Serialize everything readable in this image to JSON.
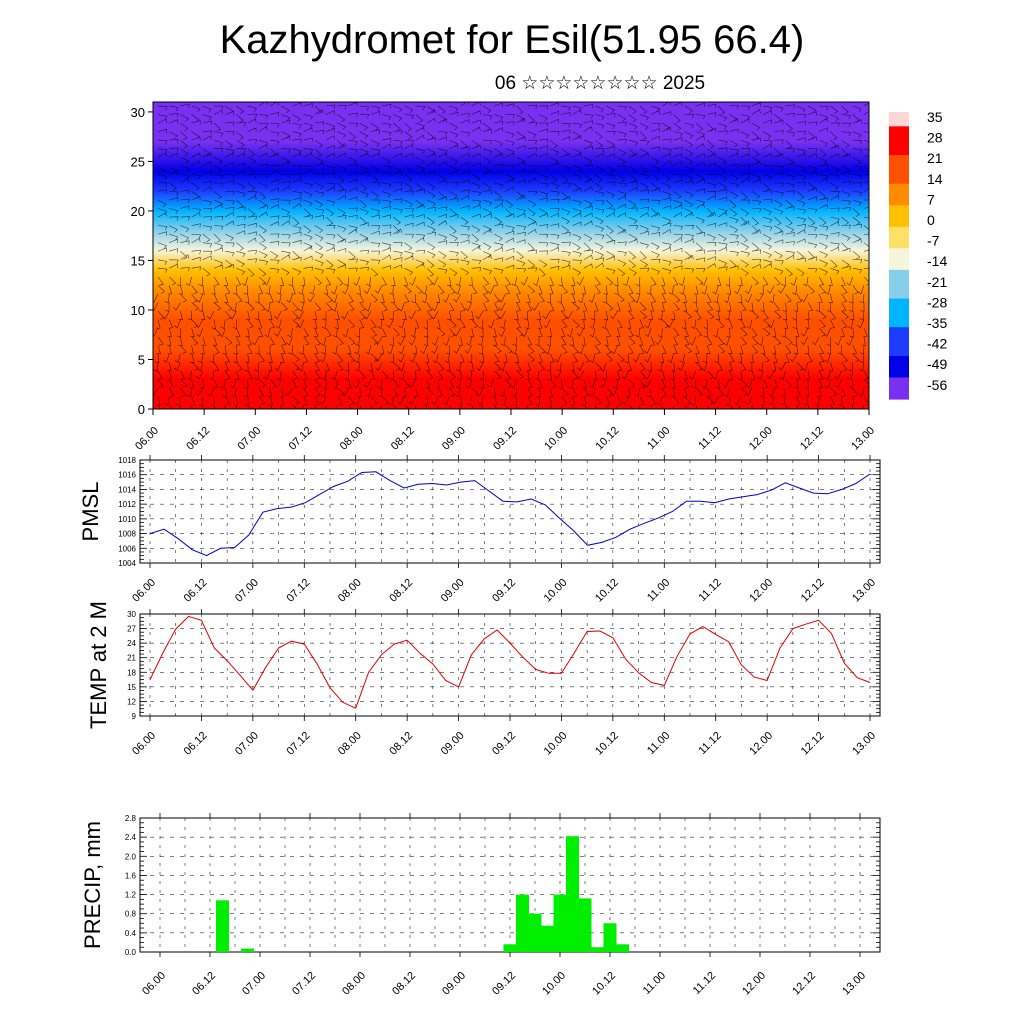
{
  "header": {
    "title": "Kazhydromet for Esil(51.95 66.4)",
    "subtitle": "06 ☆☆☆☆☆☆☆☆ 2025"
  },
  "chart_data": [
    {
      "type": "heatmap",
      "title": "",
      "x_tick_labels": [
        "06.00",
        "06.12",
        "07.00",
        "07.12",
        "08.00",
        "08.12",
        "09.00",
        "09.12",
        "10.00",
        "10.12",
        "11.00",
        "11.12",
        "12.00",
        "12.12",
        "13.00"
      ],
      "y_ticks": [
        0,
        5,
        10,
        15,
        20,
        25,
        30
      ],
      "ylim": [
        0,
        31
      ],
      "colorbar": {
        "labels": [
          "35",
          "28",
          "21",
          "14",
          "7",
          "0",
          "-7",
          "-14",
          "-21",
          "-28",
          "-35",
          "-42",
          "-49",
          "-56"
        ]
      },
      "vertical_profile": [
        {
          "level": 0,
          "value": 30
        },
        {
          "level": 3,
          "value": 27
        },
        {
          "level": 6,
          "value": 22
        },
        {
          "level": 9,
          "value": 16
        },
        {
          "level": 12,
          "value": 8
        },
        {
          "level": 14,
          "value": 0
        },
        {
          "level": 16,
          "value": -10
        },
        {
          "level": 18,
          "value": -24
        },
        {
          "level": 20,
          "value": -35
        },
        {
          "level": 22,
          "value": -44
        },
        {
          "level": 24,
          "value": -50
        },
        {
          "level": 27,
          "value": -56
        },
        {
          "level": 31,
          "value": -62
        }
      ],
      "colors": {
        "warm": "#ff0000",
        "orange": "#ff8c00",
        "yellow": "#ffe066",
        "pale": "#f5f5dc",
        "light_blue": "#87ceeb",
        "cyan": "#00b4ff",
        "blue": "#1e3cff",
        "dark_blue": "#0000e6",
        "violet": "#7a30f0",
        "pink": "#ffd6d6",
        "barbs": "#000000"
      }
    },
    {
      "type": "line",
      "ylabel": "PMSL",
      "ylim": [
        1004,
        1018
      ],
      "y_ticks": [
        "1004",
        "1006",
        "1008",
        "1010",
        "1012",
        "1014",
        "1016",
        "1018"
      ],
      "x_tick_labels": [
        "06.00",
        "06.12",
        "07.00",
        "07.12",
        "08.00",
        "08.12",
        "09.00",
        "09.12",
        "10.00",
        "10.12",
        "11.00",
        "11.12",
        "12.00",
        "12.12",
        "13.00"
      ],
      "color": "#0000cc",
      "values": [
        1008.0,
        1008.6,
        1007.3,
        1005.8,
        1005.0,
        1006.0,
        1006.1,
        1007.8,
        1010.9,
        1011.4,
        1011.6,
        1012.2,
        1013.3,
        1014.4,
        1015.1,
        1016.3,
        1016.4,
        1015.2,
        1014.2,
        1014.7,
        1014.8,
        1014.6,
        1015.0,
        1015.2,
        1013.8,
        1012.4,
        1012.3,
        1012.7,
        1011.9,
        1010.1,
        1008.4,
        1006.4,
        1006.8,
        1007.5,
        1008.6,
        1009.4,
        1010.1,
        1011.0,
        1012.4,
        1012.4,
        1012.2,
        1012.7,
        1013.0,
        1013.3,
        1013.9,
        1014.9,
        1014.2,
        1013.5,
        1013.4,
        1014.0,
        1014.8,
        1016.1
      ]
    },
    {
      "type": "line",
      "ylabel": "TEMP at 2 M",
      "ylim": [
        9,
        30
      ],
      "y_ticks": [
        "9",
        "12",
        "15",
        "18",
        "21",
        "24",
        "27",
        "30"
      ],
      "x_tick_labels": [
        "06.00",
        "06.12",
        "07.00",
        "07.12",
        "08.00",
        "08.12",
        "09.00",
        "09.12",
        "10.00",
        "10.12",
        "11.00",
        "11.12",
        "12.00",
        "12.12",
        "13.00"
      ],
      "color": "#dd0000",
      "values": [
        16.5,
        22.0,
        26.9,
        29.5,
        28.7,
        23.0,
        20.4,
        17.4,
        14.3,
        19.0,
        23.0,
        24.4,
        23.8,
        19.7,
        14.8,
        11.8,
        10.6,
        18.0,
        21.6,
        23.8,
        24.6,
        21.9,
        19.7,
        16.3,
        15.0,
        21.6,
        24.9,
        26.7,
        24.0,
        21.1,
        18.6,
        17.8,
        17.8,
        22.0,
        26.4,
        26.5,
        25.1,
        20.7,
        17.9,
        15.9,
        15.3,
        21.3,
        25.9,
        27.4,
        25.8,
        24.3,
        19.5,
        17.0,
        16.3,
        23.0,
        27.0,
        27.9,
        28.7,
        26.0,
        19.9,
        16.9,
        15.9
      ]
    },
    {
      "type": "bar",
      "ylabel": "PRECIP, mm",
      "ylim": [
        0,
        2.8
      ],
      "y_ticks": [
        "0.0",
        "0.4",
        "0.8",
        "1.2",
        "1.6",
        "2.0",
        "2.4",
        "2.8"
      ],
      "x_tick_labels": [
        "06.00",
        "06.12",
        "07.00",
        "07.12",
        "08.00",
        "08.12",
        "09.00",
        "09.12",
        "10.00",
        "10.12",
        "11.00",
        "11.12",
        "12.00",
        "12.12",
        "13.00"
      ],
      "color": "#00ee00",
      "bars": [
        {
          "hours": 15,
          "value": 1.08
        },
        {
          "hours": 21,
          "value": 0.07
        },
        {
          "hours": 84,
          "value": 0.16
        },
        {
          "hours": 87,
          "value": 1.2
        },
        {
          "hours": 90,
          "value": 0.8
        },
        {
          "hours": 93,
          "value": 0.55
        },
        {
          "hours": 96,
          "value": 1.2
        },
        {
          "hours": 99,
          "value": 2.42
        },
        {
          "hours": 102,
          "value": 1.12
        },
        {
          "hours": 105,
          "value": 0.1
        },
        {
          "hours": 108,
          "value": 0.6
        },
        {
          "hours": 111,
          "value": 0.16
        }
      ]
    }
  ]
}
